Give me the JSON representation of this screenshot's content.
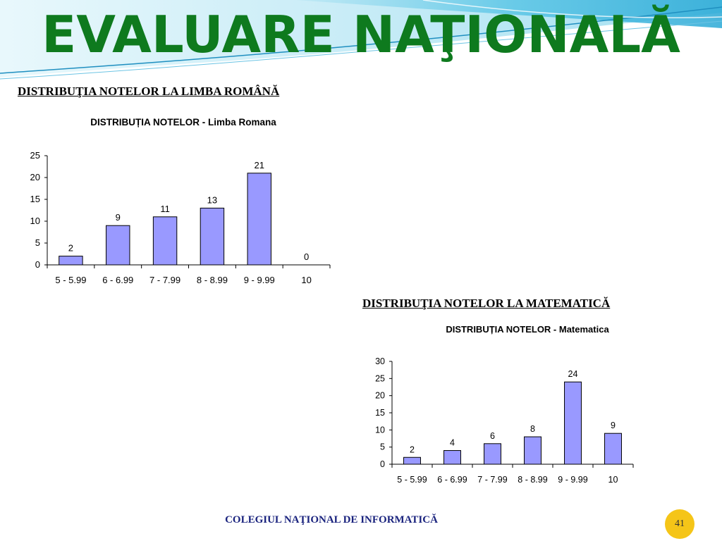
{
  "slide": {
    "title": "EVALUARE NAŢIONALĂ",
    "footer": "COLEGIUL NAŢIONAL DE INFORMATICĂ",
    "page_number": "41"
  },
  "sections": [
    {
      "heading": "DISTRIBUŢIA NOTELOR LA LIMBA ROMÂNĂ"
    },
    {
      "heading": "DISTRIBUŢIA NOTELOR LA MATEMATICĂ"
    }
  ],
  "colors": {
    "title": "#0e7a1e",
    "bar_fill": "#9999ff",
    "bar_stroke": "#000000",
    "footer": "#1a237e",
    "badge": "#f5c518"
  },
  "chart_data": [
    {
      "type": "bar",
      "title": "DISTRIBUȚIA NOTELOR - Limba Romana",
      "categories": [
        "5 - 5.99",
        "6 - 6.99",
        "7 - 7.99",
        "8 - 8.99",
        "9 - 9.99",
        "10"
      ],
      "values": [
        2,
        9,
        11,
        13,
        21,
        0
      ],
      "yticks": [
        0,
        5,
        10,
        15,
        20,
        25
      ],
      "ylim": [
        0,
        25
      ],
      "xlabel": "",
      "ylabel": "",
      "grid": false,
      "data_labels": true
    },
    {
      "type": "bar",
      "title": "DISTRIBUȚIA NOTELOR - Matematica",
      "categories": [
        "5 - 5.99",
        "6 - 6.99",
        "7 - 7.99",
        "8 - 8.99",
        "9 - 9.99",
        "10"
      ],
      "values": [
        2,
        4,
        6,
        8,
        24,
        9
      ],
      "yticks": [
        0,
        5,
        10,
        15,
        20,
        25,
        30
      ],
      "ylim": [
        0,
        30
      ],
      "xlabel": "",
      "ylabel": "",
      "grid": false,
      "data_labels": true
    }
  ]
}
